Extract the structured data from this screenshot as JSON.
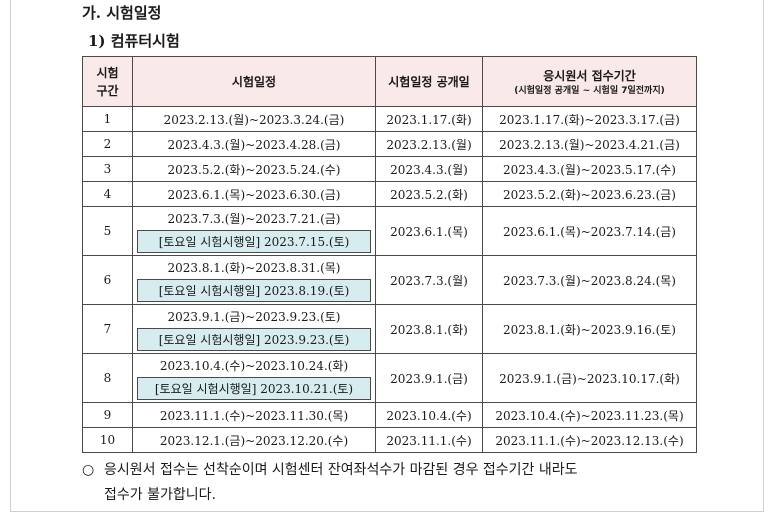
{
  "section_title": "가. 시험일정",
  "sub_title": "1) 컴퓨터시험",
  "table": {
    "headers": {
      "category": "시험\n구간",
      "schedule": "시험일정",
      "announce": "시험일정 공개일",
      "application": "응시원서 접수기간",
      "application_note": "(시험일정 공개일 ~ 시험일 7일전까지)"
    },
    "rows": [
      {
        "no": "1",
        "schedule": "2023.2.13.(월)~2023.3.24.(금)",
        "announce": "2023.1.17.(화)",
        "application": "2023.1.17.(화)~2023.3.17.(금)"
      },
      {
        "no": "2",
        "schedule": "2023.4.3.(월)~2023.4.28.(금)",
        "announce": "2023.2.13.(월)",
        "application": "2023.2.13.(월)~2023.4.21.(금)"
      },
      {
        "no": "3",
        "schedule": "2023.5.2.(화)~2023.5.24.(수)",
        "announce": "2023.4.3.(월)",
        "application": "2023.4.3.(월)~2023.5.17.(수)"
      },
      {
        "no": "4",
        "schedule": "2023.6.1.(목)~2023.6.30.(금)",
        "announce": "2023.5.2.(화)",
        "application": "2023.5.2.(화)~2023.6.23.(금)"
      },
      {
        "no": "5",
        "schedule": "2023.7.3.(월)~2023.7.21.(금)",
        "saturday": "[토요일 시험시행일] 2023.7.15.(토)",
        "announce": "2023.6.1.(목)",
        "application": "2023.6.1.(목)~2023.7.14.(금)"
      },
      {
        "no": "6",
        "schedule": "2023.8.1.(화)~2023.8.31.(목)",
        "saturday": "[토요일 시험시행일] 2023.8.19.(토)",
        "announce": "2023.7.3.(월)",
        "application": "2023.7.3.(월)~2023.8.24.(목)"
      },
      {
        "no": "7",
        "schedule": "2023.9.1.(금)~2023.9.23.(토)",
        "saturday": "[토요일 시험시행일] 2023.9.23.(토)",
        "announce": "2023.8.1.(화)",
        "application": "2023.8.1.(화)~2023.9.16.(토)"
      },
      {
        "no": "8",
        "schedule": "2023.10.4.(수)~2023.10.24.(화)",
        "saturday": "[토요일 시험시행일] 2023.10.21.(토)",
        "announce": "2023.9.1.(금)",
        "application": "2023.9.1.(금)~2023.10.17.(화)"
      },
      {
        "no": "9",
        "schedule": "2023.11.1.(수)~2023.11.30.(목)",
        "announce": "2023.10.4.(수)",
        "application": "2023.10.4.(수)~2023.11.23.(목)"
      },
      {
        "no": "10",
        "schedule": "2023.12.1.(금)~2023.12.20.(수)",
        "announce": "2023.11.1.(수)",
        "application": "2023.11.1.(수)~2023.12.13.(수)"
      }
    ]
  },
  "footnote": {
    "bullet": "○",
    "line1": "응시원서 접수는 선착순이며 시험센터 잔여좌석수가 마감된 경우 접수기간 내라도",
    "line2": "접수가 불가합니다."
  },
  "colors": {
    "header_bg": "#f9e9e9",
    "saturday_bg": "#d6ecef"
  }
}
